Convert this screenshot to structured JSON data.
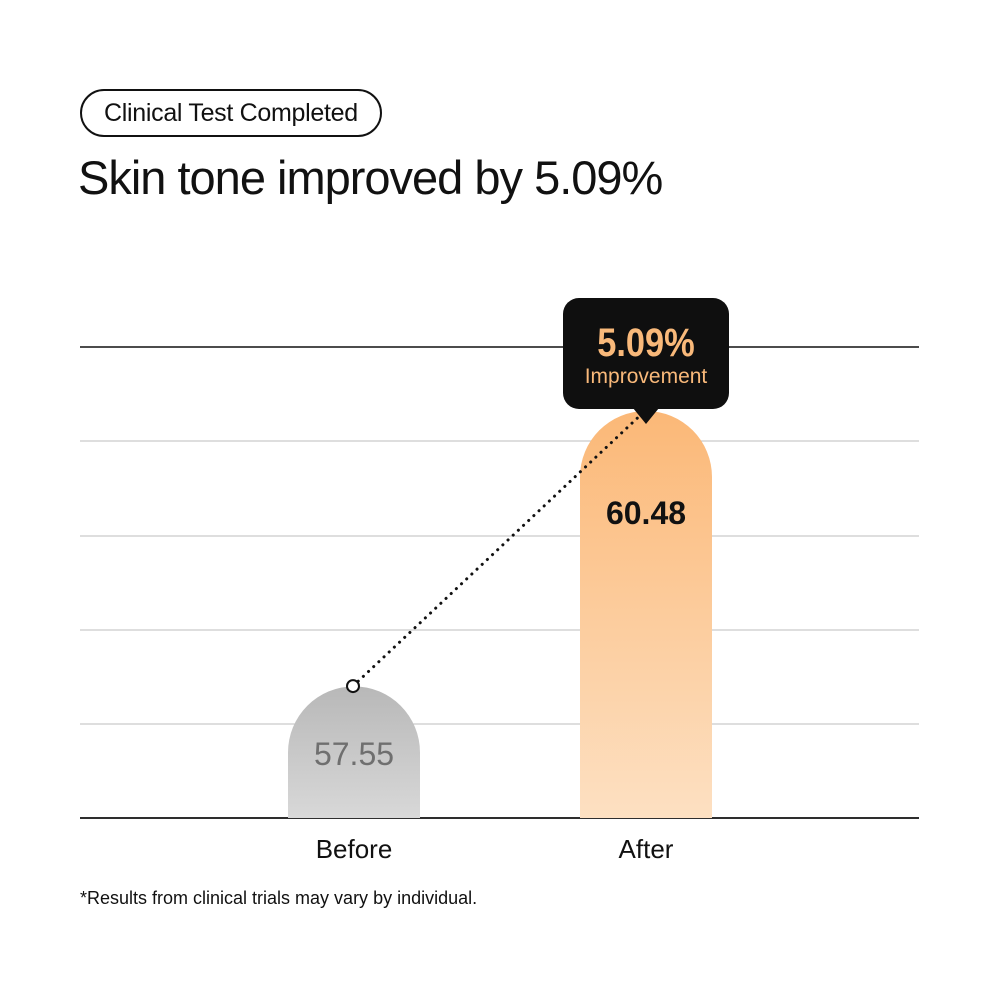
{
  "header": {
    "badge_label": "Clinical Test Completed",
    "headline": "Skin tone improved by 5.09%"
  },
  "callout": {
    "value": "5.09%",
    "label": "Improvement"
  },
  "footnote": "*Results from clinical trials may vary by individual.",
  "colors": {
    "before_bar_top": "#b8b8b8",
    "before_bar_bottom": "#d8d8d8",
    "after_bar_top": "#fbb877",
    "after_bar_bottom": "#fde0c2",
    "callout_bg": "#0f0f0f",
    "callout_text": "#f9b97a",
    "before_value_text": "#6f6f6f",
    "after_value_text": "#111111"
  },
  "chart_data": {
    "type": "bar",
    "categories": [
      "Before",
      "After"
    ],
    "values": [
      57.55,
      60.48
    ],
    "value_labels": [
      "57.55",
      "60.48"
    ],
    "title": "",
    "xlabel": "",
    "ylabel": "",
    "ylim": [
      56.15,
      61.2
    ],
    "grid": true,
    "connector": "dotted-line-between-bar-tops",
    "legend": "none"
  }
}
